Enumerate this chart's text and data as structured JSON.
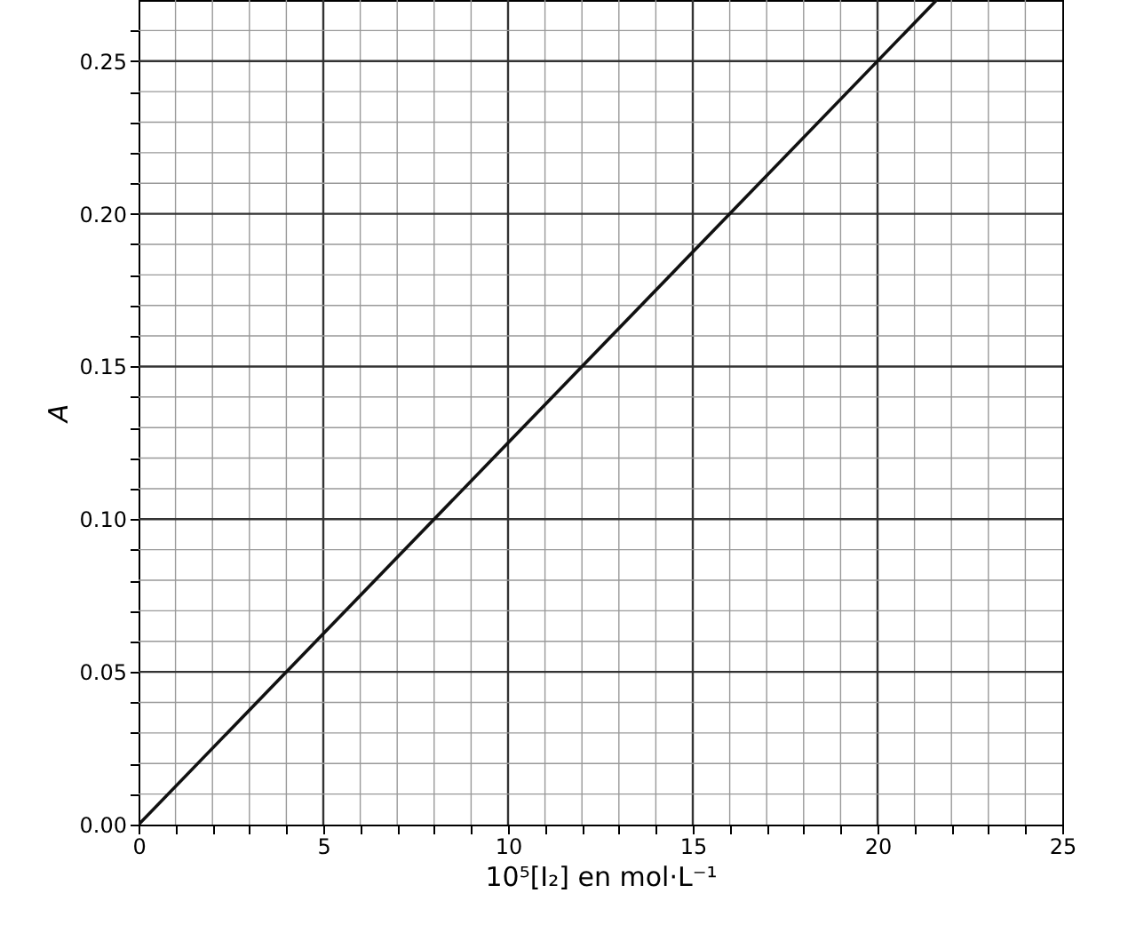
{
  "chart_data": {
    "type": "line",
    "xlabel": "10⁵[I₂] en mol·L⁻¹",
    "ylabel": "A",
    "x": [
      0,
      21.6
    ],
    "series": [
      {
        "color": "#111111",
        "values": [
          0,
          0.27
        ]
      }
    ],
    "xlim": [
      0,
      25
    ],
    "xticks": [
      0,
      {
        "value": 1,
        "label": null
      },
      {
        "value": 2,
        "label": null
      },
      {
        "value": 3,
        "label": null
      },
      {
        "value": 4,
        "label": null
      },
      5,
      {
        "value": 6,
        "label": null
      },
      {
        "value": 7,
        "label": null
      },
      {
        "value": 8,
        "label": null
      },
      {
        "value": 9,
        "label": null
      },
      10,
      {
        "value": 11,
        "label": null
      },
      {
        "value": 12,
        "label": null
      },
      {
        "value": 13,
        "label": null
      },
      {
        "value": 14,
        "label": null
      },
      15,
      {
        "value": 16,
        "label": null
      },
      {
        "value": 17,
        "label": null
      },
      {
        "value": 18,
        "label": null
      },
      {
        "value": 19,
        "label": null
      },
      20,
      {
        "value": 21,
        "label": null
      },
      {
        "value": 22,
        "label": null
      },
      {
        "value": 23,
        "label": null
      },
      {
        "value": 24,
        "label": null
      },
      25
    ],
    "ylim": [
      0,
      0.27
    ],
    "yticks": [
      {
        "value": 0,
        "label": "0.00"
      },
      {
        "value": 0.01,
        "label": null
      },
      {
        "value": 0.02,
        "label": null
      },
      {
        "value": 0.03,
        "label": null
      },
      {
        "value": 0.04,
        "label": null
      },
      {
        "value": 0.05,
        "label": "0.05"
      },
      {
        "value": 0.06,
        "label": null
      },
      {
        "value": 0.07,
        "label": null
      },
      {
        "value": 0.08,
        "label": null
      },
      {
        "value": 0.09,
        "label": null
      },
      {
        "value": 0.1,
        "label": "0.10"
      },
      {
        "value": 0.11,
        "label": null
      },
      {
        "value": 0.12,
        "label": null
      },
      {
        "value": 0.13,
        "label": null
      },
      {
        "value": 0.14,
        "label": null
      },
      {
        "value": 0.15,
        "label": "0.15"
      },
      {
        "value": 0.16,
        "label": null
      },
      {
        "value": 0.17,
        "label": null
      },
      {
        "value": 0.18,
        "label": null
      },
      {
        "value": 0.19,
        "label": null
      },
      {
        "value": 0.2,
        "label": "0.20"
      },
      {
        "value": 0.21,
        "label": null
      },
      {
        "value": 0.22,
        "label": null
      },
      {
        "value": 0.23,
        "label": null
      },
      {
        "value": 0.24,
        "label": null
      },
      {
        "value": 0.25,
        "label": "0.25"
      },
      {
        "value": 0.26,
        "label": null
      }
    ],
    "grid": true,
    "line_style": "solid",
    "marker": "none"
  }
}
